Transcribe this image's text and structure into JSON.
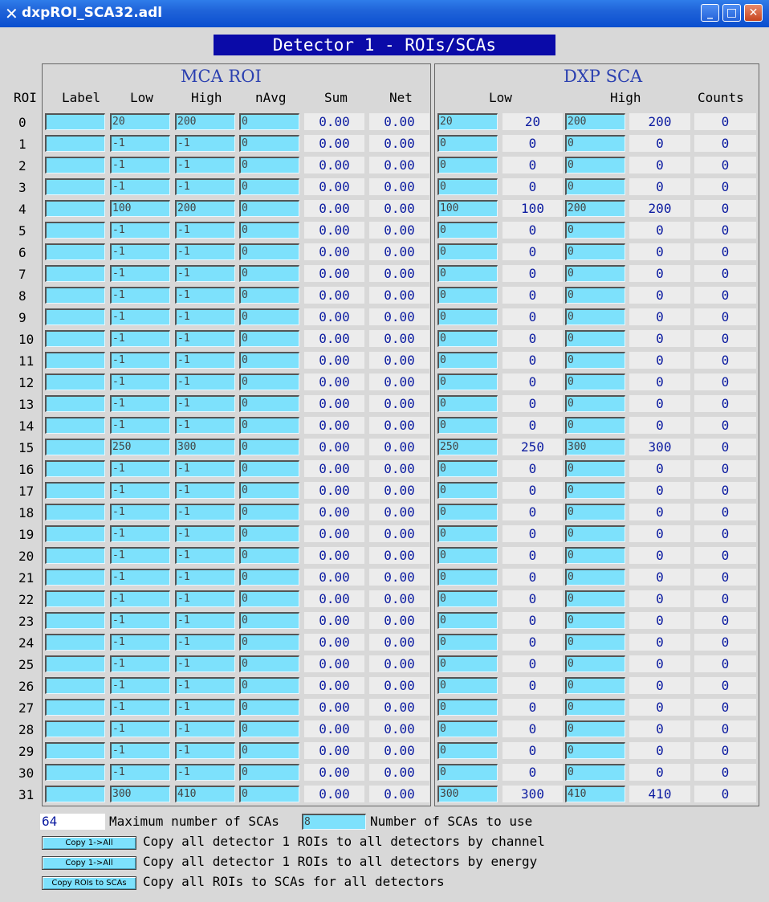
{
  "window": {
    "title": "dxpROI_SCA32.adl",
    "icon": "x-app-icon",
    "buttons": {
      "minimize": "_",
      "maximize": "□",
      "close": "✕"
    }
  },
  "banner": "Detector 1 - ROIs/SCAs",
  "roi_header": "ROI",
  "mca_roi": {
    "title": "MCA ROI",
    "headers": {
      "label": "Label",
      "low": "Low",
      "high": "High",
      "navg": "nAvg",
      "sum": "Sum",
      "net": "Net"
    }
  },
  "dxp_sca": {
    "title": "DXP SCA",
    "headers": {
      "low": "Low",
      "high": "High",
      "counts": "Counts"
    }
  },
  "rows": [
    {
      "roi": "0",
      "label": "",
      "low": "20",
      "high": "200",
      "navg": "0",
      "sum": "0.00",
      "net": "0.00",
      "sca_low_in": "20",
      "sca_low": "20",
      "sca_high_in": "200",
      "sca_high": "200",
      "counts": "0"
    },
    {
      "roi": "1",
      "label": "",
      "low": "-1",
      "high": "-1",
      "navg": "0",
      "sum": "0.00",
      "net": "0.00",
      "sca_low_in": "0",
      "sca_low": "0",
      "sca_high_in": "0",
      "sca_high": "0",
      "counts": "0"
    },
    {
      "roi": "2",
      "label": "",
      "low": "-1",
      "high": "-1",
      "navg": "0",
      "sum": "0.00",
      "net": "0.00",
      "sca_low_in": "0",
      "sca_low": "0",
      "sca_high_in": "0",
      "sca_high": "0",
      "counts": "0"
    },
    {
      "roi": "3",
      "label": "",
      "low": "-1",
      "high": "-1",
      "navg": "0",
      "sum": "0.00",
      "net": "0.00",
      "sca_low_in": "0",
      "sca_low": "0",
      "sca_high_in": "0",
      "sca_high": "0",
      "counts": "0"
    },
    {
      "roi": "4",
      "label": "",
      "low": "100",
      "high": "200",
      "navg": "0",
      "sum": "0.00",
      "net": "0.00",
      "sca_low_in": "100",
      "sca_low": "100",
      "sca_high_in": "200",
      "sca_high": "200",
      "counts": "0"
    },
    {
      "roi": "5",
      "label": "",
      "low": "-1",
      "high": "-1",
      "navg": "0",
      "sum": "0.00",
      "net": "0.00",
      "sca_low_in": "0",
      "sca_low": "0",
      "sca_high_in": "0",
      "sca_high": "0",
      "counts": "0"
    },
    {
      "roi": "6",
      "label": "",
      "low": "-1",
      "high": "-1",
      "navg": "0",
      "sum": "0.00",
      "net": "0.00",
      "sca_low_in": "0",
      "sca_low": "0",
      "sca_high_in": "0",
      "sca_high": "0",
      "counts": "0"
    },
    {
      "roi": "7",
      "label": "",
      "low": "-1",
      "high": "-1",
      "navg": "0",
      "sum": "0.00",
      "net": "0.00",
      "sca_low_in": "0",
      "sca_low": "0",
      "sca_high_in": "0",
      "sca_high": "0",
      "counts": "0"
    },
    {
      "roi": "8",
      "label": "",
      "low": "-1",
      "high": "-1",
      "navg": "0",
      "sum": "0.00",
      "net": "0.00",
      "sca_low_in": "0",
      "sca_low": "0",
      "sca_high_in": "0",
      "sca_high": "0",
      "counts": "0"
    },
    {
      "roi": "9",
      "label": "",
      "low": "-1",
      "high": "-1",
      "navg": "0",
      "sum": "0.00",
      "net": "0.00",
      "sca_low_in": "0",
      "sca_low": "0",
      "sca_high_in": "0",
      "sca_high": "0",
      "counts": "0"
    },
    {
      "roi": "10",
      "label": "",
      "low": "-1",
      "high": "-1",
      "navg": "0",
      "sum": "0.00",
      "net": "0.00",
      "sca_low_in": "0",
      "sca_low": "0",
      "sca_high_in": "0",
      "sca_high": "0",
      "counts": "0"
    },
    {
      "roi": "11",
      "label": "",
      "low": "-1",
      "high": "-1",
      "navg": "0",
      "sum": "0.00",
      "net": "0.00",
      "sca_low_in": "0",
      "sca_low": "0",
      "sca_high_in": "0",
      "sca_high": "0",
      "counts": "0"
    },
    {
      "roi": "12",
      "label": "",
      "low": "-1",
      "high": "-1",
      "navg": "0",
      "sum": "0.00",
      "net": "0.00",
      "sca_low_in": "0",
      "sca_low": "0",
      "sca_high_in": "0",
      "sca_high": "0",
      "counts": "0"
    },
    {
      "roi": "13",
      "label": "",
      "low": "-1",
      "high": "-1",
      "navg": "0",
      "sum": "0.00",
      "net": "0.00",
      "sca_low_in": "0",
      "sca_low": "0",
      "sca_high_in": "0",
      "sca_high": "0",
      "counts": "0"
    },
    {
      "roi": "14",
      "label": "",
      "low": "-1",
      "high": "-1",
      "navg": "0",
      "sum": "0.00",
      "net": "0.00",
      "sca_low_in": "0",
      "sca_low": "0",
      "sca_high_in": "0",
      "sca_high": "0",
      "counts": "0"
    },
    {
      "roi": "15",
      "label": "",
      "low": "250",
      "high": "300",
      "navg": "0",
      "sum": "0.00",
      "net": "0.00",
      "sca_low_in": "250",
      "sca_low": "250",
      "sca_high_in": "300",
      "sca_high": "300",
      "counts": "0"
    },
    {
      "roi": "16",
      "label": "",
      "low": "-1",
      "high": "-1",
      "navg": "0",
      "sum": "0.00",
      "net": "0.00",
      "sca_low_in": "0",
      "sca_low": "0",
      "sca_high_in": "0",
      "sca_high": "0",
      "counts": "0"
    },
    {
      "roi": "17",
      "label": "",
      "low": "-1",
      "high": "-1",
      "navg": "0",
      "sum": "0.00",
      "net": "0.00",
      "sca_low_in": "0",
      "sca_low": "0",
      "sca_high_in": "0",
      "sca_high": "0",
      "counts": "0"
    },
    {
      "roi": "18",
      "label": "",
      "low": "-1",
      "high": "-1",
      "navg": "0",
      "sum": "0.00",
      "net": "0.00",
      "sca_low_in": "0",
      "sca_low": "0",
      "sca_high_in": "0",
      "sca_high": "0",
      "counts": "0"
    },
    {
      "roi": "19",
      "label": "",
      "low": "-1",
      "high": "-1",
      "navg": "0",
      "sum": "0.00",
      "net": "0.00",
      "sca_low_in": "0",
      "sca_low": "0",
      "sca_high_in": "0",
      "sca_high": "0",
      "counts": "0"
    },
    {
      "roi": "20",
      "label": "",
      "low": "-1",
      "high": "-1",
      "navg": "0",
      "sum": "0.00",
      "net": "0.00",
      "sca_low_in": "0",
      "sca_low": "0",
      "sca_high_in": "0",
      "sca_high": "0",
      "counts": "0"
    },
    {
      "roi": "21",
      "label": "",
      "low": "-1",
      "high": "-1",
      "navg": "0",
      "sum": "0.00",
      "net": "0.00",
      "sca_low_in": "0",
      "sca_low": "0",
      "sca_high_in": "0",
      "sca_high": "0",
      "counts": "0"
    },
    {
      "roi": "22",
      "label": "",
      "low": "-1",
      "high": "-1",
      "navg": "0",
      "sum": "0.00",
      "net": "0.00",
      "sca_low_in": "0",
      "sca_low": "0",
      "sca_high_in": "0",
      "sca_high": "0",
      "counts": "0"
    },
    {
      "roi": "23",
      "label": "",
      "low": "-1",
      "high": "-1",
      "navg": "0",
      "sum": "0.00",
      "net": "0.00",
      "sca_low_in": "0",
      "sca_low": "0",
      "sca_high_in": "0",
      "sca_high": "0",
      "counts": "0"
    },
    {
      "roi": "24",
      "label": "",
      "low": "-1",
      "high": "-1",
      "navg": "0",
      "sum": "0.00",
      "net": "0.00",
      "sca_low_in": "0",
      "sca_low": "0",
      "sca_high_in": "0",
      "sca_high": "0",
      "counts": "0"
    },
    {
      "roi": "25",
      "label": "",
      "low": "-1",
      "high": "-1",
      "navg": "0",
      "sum": "0.00",
      "net": "0.00",
      "sca_low_in": "0",
      "sca_low": "0",
      "sca_high_in": "0",
      "sca_high": "0",
      "counts": "0"
    },
    {
      "roi": "26",
      "label": "",
      "low": "-1",
      "high": "-1",
      "navg": "0",
      "sum": "0.00",
      "net": "0.00",
      "sca_low_in": "0",
      "sca_low": "0",
      "sca_high_in": "0",
      "sca_high": "0",
      "counts": "0"
    },
    {
      "roi": "27",
      "label": "",
      "low": "-1",
      "high": "-1",
      "navg": "0",
      "sum": "0.00",
      "net": "0.00",
      "sca_low_in": "0",
      "sca_low": "0",
      "sca_high_in": "0",
      "sca_high": "0",
      "counts": "0"
    },
    {
      "roi": "28",
      "label": "",
      "low": "-1",
      "high": "-1",
      "navg": "0",
      "sum": "0.00",
      "net": "0.00",
      "sca_low_in": "0",
      "sca_low": "0",
      "sca_high_in": "0",
      "sca_high": "0",
      "counts": "0"
    },
    {
      "roi": "29",
      "label": "",
      "low": "-1",
      "high": "-1",
      "navg": "0",
      "sum": "0.00",
      "net": "0.00",
      "sca_low_in": "0",
      "sca_low": "0",
      "sca_high_in": "0",
      "sca_high": "0",
      "counts": "0"
    },
    {
      "roi": "30",
      "label": "",
      "low": "-1",
      "high": "-1",
      "navg": "0",
      "sum": "0.00",
      "net": "0.00",
      "sca_low_in": "0",
      "sca_low": "0",
      "sca_high_in": "0",
      "sca_high": "0",
      "counts": "0"
    },
    {
      "roi": "31",
      "label": "",
      "low": "300",
      "high": "410",
      "navg": "0",
      "sum": "0.00",
      "net": "0.00",
      "sca_low_in": "300",
      "sca_low": "300",
      "sca_high_in": "410",
      "sca_high": "410",
      "counts": "0"
    }
  ],
  "footer": {
    "max_scas_value": "64",
    "max_scas_label": "Maximum number of SCAs",
    "num_scas_value": "8",
    "num_scas_label": "Number of SCAs to use",
    "copy_channel_button": "Copy 1->All",
    "copy_channel_text": "Copy all detector 1 ROIs to all detectors by channel",
    "copy_energy_button": "Copy 1->All",
    "copy_energy_text": "Copy all detector 1 ROIs to all detectors by energy",
    "copy_sca_button": "Copy ROIs to SCAs",
    "copy_sca_text": "Copy all ROIs to SCAs for all detectors"
  },
  "colors": {
    "input_bg": "#7de1fc",
    "value_text": "#0a1aa0",
    "banner_bg": "#0a0aa8",
    "titlebar": "#0a4fcf"
  }
}
